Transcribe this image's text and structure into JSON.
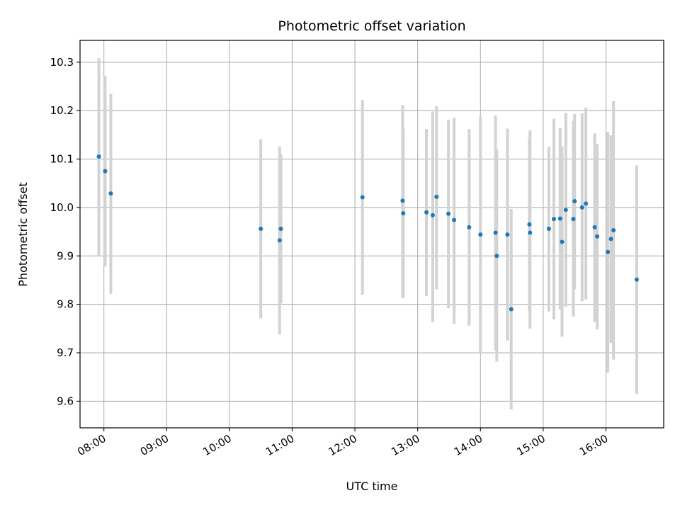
{
  "chart_data": {
    "type": "scatter",
    "title": "Photometric offset variation",
    "xlabel": "UTC time",
    "ylabel": "Photometric offset",
    "grid": true,
    "xlim": [
      7.62,
      16.92
    ],
    "ylim": [
      9.545,
      10.345
    ],
    "x_ticks": [
      {
        "value": 8,
        "label": "08:00"
      },
      {
        "value": 9,
        "label": "09:00"
      },
      {
        "value": 10,
        "label": "10:00"
      },
      {
        "value": 11,
        "label": "11:00"
      },
      {
        "value": 12,
        "label": "12:00"
      },
      {
        "value": 13,
        "label": "13:00"
      },
      {
        "value": 14,
        "label": "14:00"
      },
      {
        "value": 15,
        "label": "15:00"
      },
      {
        "value": 16,
        "label": "16:00"
      }
    ],
    "y_ticks": [
      {
        "value": 9.6,
        "label": "9.6"
      },
      {
        "value": 9.7,
        "label": "9.7"
      },
      {
        "value": 9.8,
        "label": "9.8"
      },
      {
        "value": 9.9,
        "label": "9.9"
      },
      {
        "value": 10.0,
        "label": "10.0"
      },
      {
        "value": 10.1,
        "label": "10.1"
      },
      {
        "value": 10.2,
        "label": "10.2"
      },
      {
        "value": 10.3,
        "label": "10.3"
      }
    ],
    "colors": {
      "point": "#1f77b4",
      "errorbar": "#d3d3d3",
      "grid": "#b0b0b0"
    },
    "points": [
      {
        "x": 7.92,
        "y": 10.105,
        "lo": 9.9,
        "hi": 10.308
      },
      {
        "x": 8.02,
        "y": 10.075,
        "lo": 9.878,
        "hi": 10.272
      },
      {
        "x": 8.11,
        "y": 10.029,
        "lo": 9.822,
        "hi": 10.235
      },
      {
        "x": 10.5,
        "y": 9.956,
        "lo": 9.771,
        "hi": 10.141
      },
      {
        "x": 10.8,
        "y": 9.932,
        "lo": 9.738,
        "hi": 10.126
      },
      {
        "x": 10.82,
        "y": 9.956,
        "lo": 9.802,
        "hi": 10.11
      },
      {
        "x": 12.12,
        "y": 10.021,
        "lo": 9.82,
        "hi": 10.222
      },
      {
        "x": 12.76,
        "y": 10.014,
        "lo": 9.813,
        "hi": 10.211
      },
      {
        "x": 12.77,
        "y": 9.988,
        "lo": 9.813,
        "hi": 10.163
      },
      {
        "x": 13.14,
        "y": 9.99,
        "lo": 9.817,
        "hi": 10.162
      },
      {
        "x": 13.24,
        "y": 9.984,
        "lo": 9.763,
        "hi": 10.198
      },
      {
        "x": 13.3,
        "y": 10.022,
        "lo": 9.831,
        "hi": 10.209
      },
      {
        "x": 13.49,
        "y": 9.987,
        "lo": 9.792,
        "hi": 10.181
      },
      {
        "x": 13.58,
        "y": 9.974,
        "lo": 9.76,
        "hi": 10.185
      },
      {
        "x": 13.82,
        "y": 9.959,
        "lo": 9.756,
        "hi": 10.162
      },
      {
        "x": 14.0,
        "y": 9.944,
        "lo": 9.7,
        "hi": 10.188
      },
      {
        "x": 14.24,
        "y": 9.948,
        "lo": 9.705,
        "hi": 10.19
      },
      {
        "x": 14.26,
        "y": 9.9,
        "lo": 9.682,
        "hi": 10.12
      },
      {
        "x": 14.43,
        "y": 9.944,
        "lo": 9.725,
        "hi": 10.163
      },
      {
        "x": 14.49,
        "y": 9.79,
        "lo": 9.583,
        "hi": 9.997
      },
      {
        "x": 14.78,
        "y": 9.965,
        "lo": 9.786,
        "hi": 10.144
      },
      {
        "x": 14.79,
        "y": 9.948,
        "lo": 9.75,
        "hi": 10.159
      },
      {
        "x": 15.09,
        "y": 9.956,
        "lo": 9.785,
        "hi": 10.125
      },
      {
        "x": 15.17,
        "y": 9.976,
        "lo": 9.769,
        "hi": 10.183
      },
      {
        "x": 15.27,
        "y": 9.977,
        "lo": 9.79,
        "hi": 10.164
      },
      {
        "x": 15.3,
        "y": 9.929,
        "lo": 9.733,
        "hi": 10.126
      },
      {
        "x": 15.36,
        "y": 9.995,
        "lo": 9.795,
        "hi": 10.195
      },
      {
        "x": 15.48,
        "y": 9.976,
        "lo": 9.775,
        "hi": 10.178
      },
      {
        "x": 15.5,
        "y": 10.013,
        "lo": 9.831,
        "hi": 10.193
      },
      {
        "x": 15.62,
        "y": 10.0,
        "lo": 9.806,
        "hi": 10.194
      },
      {
        "x": 15.68,
        "y": 10.008,
        "lo": 9.81,
        "hi": 10.206
      },
      {
        "x": 15.82,
        "y": 9.959,
        "lo": 9.763,
        "hi": 10.153
      },
      {
        "x": 15.86,
        "y": 9.94,
        "lo": 9.748,
        "hi": 10.131
      },
      {
        "x": 16.03,
        "y": 9.908,
        "lo": 9.659,
        "hi": 10.156
      },
      {
        "x": 16.08,
        "y": 9.935,
        "lo": 9.72,
        "hi": 10.149
      },
      {
        "x": 16.12,
        "y": 9.953,
        "lo": 9.686,
        "hi": 10.22
      },
      {
        "x": 16.49,
        "y": 9.851,
        "lo": 9.615,
        "hi": 10.087
      }
    ]
  }
}
